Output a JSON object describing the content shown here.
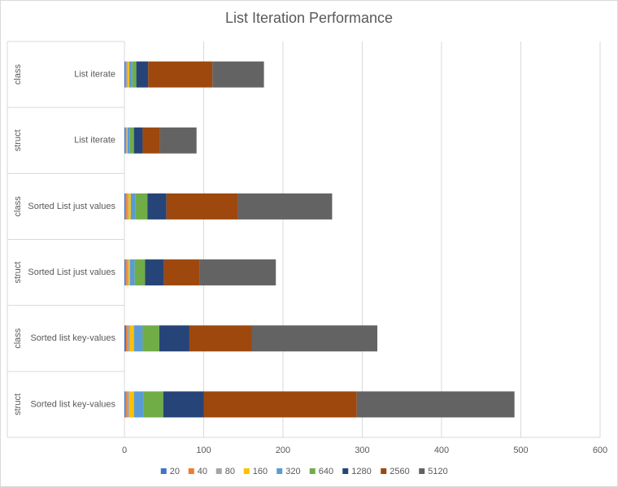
{
  "chart_data": {
    "type": "bar",
    "orientation": "horizontal",
    "stacked": true,
    "title": "List Iteration Performance",
    "xlabel": "",
    "ylabel": "",
    "xlim": [
      0,
      600
    ],
    "xticks": [
      0,
      100,
      200,
      300,
      400,
      500,
      600
    ],
    "grid": true,
    "legend_position": "bottom",
    "categories": [
      {
        "group": "class",
        "label": "List iterate"
      },
      {
        "group": "struct",
        "label": "List iterate"
      },
      {
        "group": "class",
        "label": "Sorted List just values"
      },
      {
        "group": "struct",
        "label": "Sorted List just values"
      },
      {
        "group": "class",
        "label": "Sorted list key-values"
      },
      {
        "group": "struct",
        "label": "Sorted list key-values"
      }
    ],
    "series": [
      {
        "name": "20",
        "color": "#4472c4",
        "values": [
          1,
          1,
          1,
          1,
          2,
          1
        ]
      },
      {
        "name": "40",
        "color": "#ed7d31",
        "values": [
          1,
          1,
          2,
          2,
          2,
          2
        ]
      },
      {
        "name": "80",
        "color": "#a5a5a5",
        "values": [
          2,
          1,
          2,
          2,
          3,
          3
        ]
      },
      {
        "name": "160",
        "color": "#ffc000",
        "values": [
          2,
          1,
          3,
          2,
          5,
          6
        ]
      },
      {
        "name": "320",
        "color": "#5b9bd5",
        "values": [
          4,
          3,
          6,
          6,
          11,
          12
        ]
      },
      {
        "name": "640",
        "color": "#70ad47",
        "values": [
          5,
          5,
          15,
          13,
          21,
          25
        ]
      },
      {
        "name": "1280",
        "color": "#264478",
        "values": [
          15,
          11,
          24,
          24,
          38,
          51
        ]
      },
      {
        "name": "2560",
        "color": "#9e480e",
        "values": [
          81,
          22,
          90,
          45,
          79,
          193
        ]
      },
      {
        "name": "5120",
        "color": "#636363",
        "values": [
          65,
          46,
          119,
          96,
          158,
          199
        ]
      }
    ]
  }
}
